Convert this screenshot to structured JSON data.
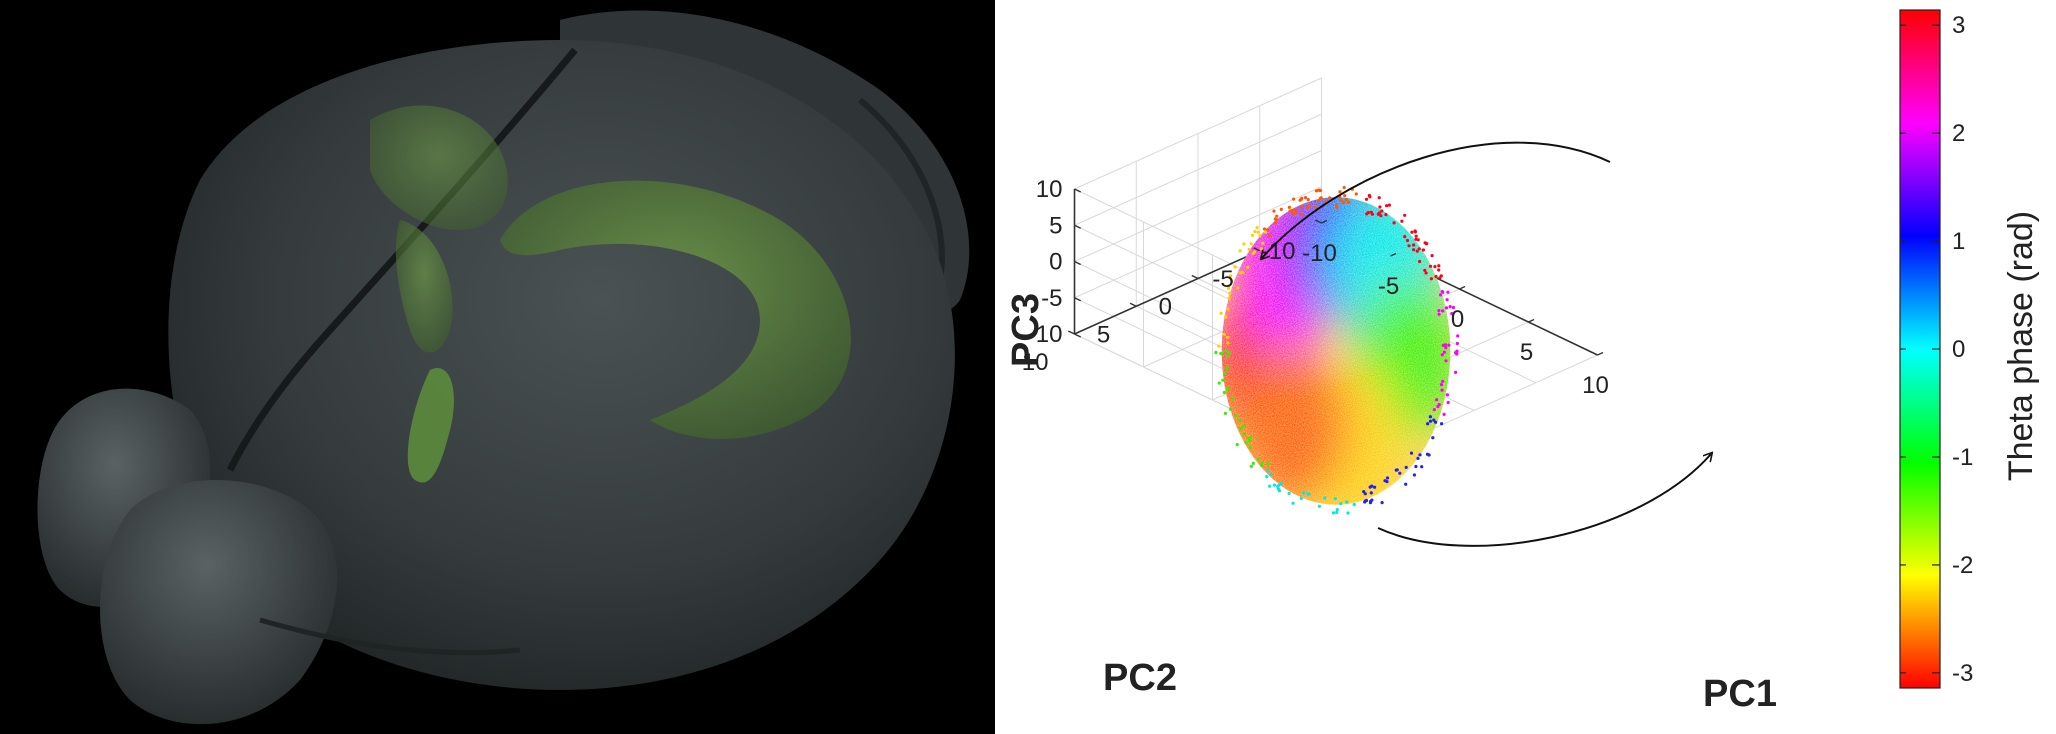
{
  "panel_left": {
    "icon": "mouse-brain-3d-render",
    "colors": {
      "background": "#000000",
      "brain": "#3a4042",
      "highlight": "#5a8a3a"
    }
  },
  "chart_data": {
    "type": "scatter",
    "subtype": "3d-scatter",
    "title": "",
    "xlabel": "PC1",
    "ylabel": "PC2",
    "zlabel": "PC3",
    "xlim": [
      -10,
      10
    ],
    "ylim": [
      -10,
      10
    ],
    "zlim": [
      -10,
      10
    ],
    "x_ticks": [
      "-10",
      "-5",
      "0",
      "5",
      "10"
    ],
    "y_ticks": [
      "-10",
      "-5",
      "0",
      "5",
      "10"
    ],
    "z_ticks": [
      "-10",
      "-5",
      "0",
      "5",
      "10"
    ],
    "grid": true,
    "cloud": {
      "center": [
        0,
        0,
        0
      ],
      "semi_axes": [
        6,
        6,
        4
      ],
      "color_by": "theta phase",
      "phase_range": [
        -3.14,
        3.14
      ]
    },
    "phase_sectors": [
      {
        "phase": 3.14,
        "color": "#ff0018",
        "position": "left, low"
      },
      {
        "phase": 2.2,
        "color": "#ff00ff",
        "position": "left, high"
      },
      {
        "phase": 1.0,
        "color": "#2020ff",
        "position": "top, center"
      },
      {
        "phase": 0.0,
        "color": "#00e8e8",
        "position": "top, right"
      },
      {
        "phase": -1.0,
        "color": "#38f000",
        "position": "right"
      },
      {
        "phase": -2.0,
        "color": "#ffd000",
        "position": "bottom, center"
      },
      {
        "phase": -2.7,
        "color": "#ff5a00",
        "position": "bottom, left"
      }
    ],
    "annotations": [
      {
        "type": "curved-arrow",
        "direction": "counterclockwise",
        "position": "top"
      },
      {
        "type": "curved-arrow",
        "direction": "counterclockwise",
        "position": "bottom"
      }
    ],
    "colorbar": {
      "label": "Theta phase (rad)",
      "ticks": [
        "3",
        "2",
        "1",
        "0",
        "-1",
        "-2",
        "-3"
      ],
      "range": [
        -3.14,
        3.14
      ],
      "colors": [
        "#ff0000",
        "#ff00ff",
        "#0000ff",
        "#00ffff",
        "#00ff00",
        "#ffff00",
        "#ff0000"
      ]
    }
  }
}
